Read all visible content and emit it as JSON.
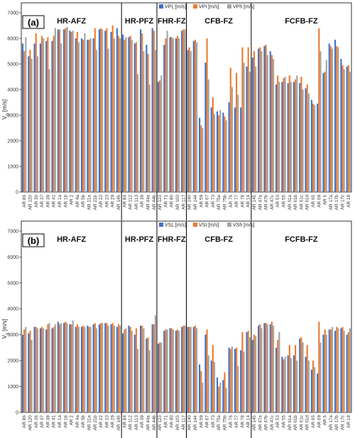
{
  "chart_data": [
    {
      "type": "bar",
      "panel_label": "(a)",
      "ylabel": "Vp [m/s]",
      "ylabel_main": "V",
      "ylabel_sub": "p",
      "ylabel_unit": "[m/s]",
      "ylim": [
        0,
        7000
      ],
      "yticks": [
        0,
        1000,
        2000,
        3000,
        4000,
        5000,
        6000,
        7000
      ],
      "grid": false,
      "legend_position": "top",
      "zones": [
        {
          "label": "HR-AFZ",
          "start": 0,
          "end": 17
        },
        {
          "label": "HR-PFZ",
          "start": 17,
          "end": 23
        },
        {
          "label": "FHR-FZ",
          "start": 23,
          "end": 28
        },
        {
          "label": "CFB-FZ",
          "start": 28,
          "end": 39
        },
        {
          "label": "FCFB-FZ",
          "start": 39,
          "end": 56
        }
      ],
      "categories": [
        "AR 86",
        "AR 120",
        "AR 36",
        "AR 37",
        "AR 38",
        "AR 41",
        "AR 1a",
        "AR 1b",
        "AR 2",
        "AR 4a",
        "AR 5b",
        "AR 21a",
        "AR 21b",
        "AR 22",
        "AR 23",
        "AR 29",
        "AR 146",
        "AR 84",
        "AR 112",
        "AR 113",
        "AR 39",
        "AR 44a",
        "AR 44b",
        "AR 123",
        "AR 71",
        "AR 80",
        "AR 103",
        "AR 117",
        "AR 140",
        "AR 144",
        "AR 59",
        "AR 67",
        "AR 73",
        "AR 75a",
        "AR 75b",
        "AR 76",
        "AR 77",
        "AR 78",
        "AR 14",
        "AR 145",
        "AR 47a",
        "AR 47b",
        "AR 47c",
        "AR 53",
        "AR 55",
        "AR 61a",
        "AR 61b",
        "AR 61c",
        "AR 61d",
        "AR 65",
        "AR 69",
        "AR 6",
        "AR 17a",
        "AR 17b",
        "AR 17c",
        "AR 18"
      ],
      "series": [
        {
          "name": "VPL [m/s]",
          "color": "#4472c4",
          "values": [
            5800,
            5300,
            5800,
            5800,
            5900,
            5900,
            6350,
            6350,
            6300,
            6000,
            6000,
            5950,
            6000,
            6350,
            6300,
            6250,
            6400,
            6150,
            6050,
            5800,
            6350,
            5750,
            6400,
            4300,
            5750,
            6050,
            6000,
            6300,
            5550,
            5900,
            2900,
            5050,
            3300,
            3150,
            3100,
            3500,
            3300,
            3300,
            4900,
            5250,
            5600,
            5700,
            5500,
            4200,
            4300,
            4250,
            4300,
            4250,
            4050,
            3600,
            3450,
            4650,
            5800,
            5950,
            5200,
            4900
          ]
        },
        {
          "name": "VPI [m/s]",
          "color": "#ed7d31",
          "values": [
            5500,
            5550,
            6200,
            6100,
            6050,
            6100,
            6350,
            6400,
            6250,
            6250,
            5950,
            5950,
            6400,
            6400,
            6400,
            6500,
            6100,
            5950,
            6100,
            5850,
            6200,
            5400,
            6300,
            4350,
            6000,
            6050,
            6100,
            6350,
            5650,
            5950,
            2600,
            6000,
            3700,
            3000,
            2950,
            4850,
            4650,
            5650,
            5650,
            5500,
            5650,
            5750,
            5350,
            4550,
            4450,
            4550,
            4400,
            4500,
            4200,
            3450,
            6400,
            4700,
            5700,
            5700,
            4950,
            4950
          ]
        },
        {
          "name": "VPh [m/s]",
          "color": "#a5a5a5",
          "values": [
            6050,
            5200,
            5300,
            6000,
            4800,
            6400,
            5800,
            6450,
            6300,
            5850,
            6200,
            6000,
            5550,
            6350,
            5600,
            6000,
            6000,
            6050,
            5950,
            4600,
            5500,
            4200,
            5550,
            4550,
            6300,
            6000,
            6000,
            6350,
            5500,
            5850,
            2500,
            4400,
            3050,
            3200,
            2800,
            4100,
            3800,
            5050,
            4700,
            4900,
            5500,
            5350,
            5200,
            4300,
            4500,
            4300,
            4550,
            4000,
            3850,
            3400,
            5500,
            5150,
            5600,
            5650,
            4800,
            4700
          ]
        }
      ]
    },
    {
      "type": "bar",
      "panel_label": "(b)",
      "ylabel": "Vs [m/s]",
      "ylabel_main": "V",
      "ylabel_sub": "s",
      "ylabel_unit": "[m/s]",
      "ylim": [
        0,
        7000
      ],
      "yticks": [
        0,
        1000,
        2000,
        3000,
        4000,
        5000,
        6000,
        7000
      ],
      "grid": false,
      "legend_position": "top",
      "zones": [
        {
          "label": "HR-AFZ",
          "start": 0,
          "end": 17
        },
        {
          "label": "HR-PFZ",
          "start": 17,
          "end": 23
        },
        {
          "label": "FHR-FZ",
          "start": 23,
          "end": 28
        },
        {
          "label": "CFB-FZ",
          "start": 28,
          "end": 39
        },
        {
          "label": "FCFB-FZ",
          "start": 39,
          "end": 56
        }
      ],
      "categories": [
        "AR 86",
        "AR 120",
        "AR 36",
        "AR 37",
        "AR 38",
        "AR 41",
        "AR 1a",
        "AR 1b",
        "AR 2",
        "AR 4a",
        "AR 5b",
        "AR 21a",
        "AR 21b",
        "AR 22",
        "AR 23",
        "AR 29",
        "AR 146",
        "AR 84",
        "AR 112",
        "AR 113",
        "AR 39",
        "AR 44a",
        "AR 44b",
        "AR 123",
        "AR 71",
        "AR 80",
        "AR 103",
        "AR 117",
        "AR 140",
        "AR 144",
        "AR 59",
        "AR 67",
        "AR 73",
        "AR 75a",
        "AR 75b",
        "AR 76",
        "AR 77",
        "AR 78",
        "AR 14",
        "AR 145",
        "AR 47a",
        "AR 47b",
        "AR 47c",
        "AR 53",
        "AR 55",
        "AR 61a",
        "AR 61b",
        "AR 61c",
        "AR 61d",
        "AR 65",
        "AR 69",
        "AR 6",
        "AR 17a",
        "AR 17b",
        "AR 17c",
        "AR 18"
      ],
      "series": [
        {
          "name": "VSL [m/s]",
          "color": "#4472c4",
          "values": [
            3000,
            3050,
            3300,
            3250,
            3200,
            3250,
            3500,
            3450,
            3400,
            3300,
            3300,
            3350,
            3400,
            3400,
            3450,
            3400,
            3300,
            3050,
            3350,
            3000,
            3350,
            2850,
            3400,
            2650,
            3150,
            3250,
            3150,
            3300,
            3300,
            3300,
            1850,
            3000,
            2000,
            1350,
            1250,
            2500,
            2450,
            2400,
            3100,
            2800,
            3350,
            3450,
            3400,
            2500,
            2150,
            2200,
            2200,
            2850,
            2150,
            1650,
            1500,
            3000,
            3200,
            3150,
            3250,
            3000
          ]
        },
        {
          "name": "VSI [m/s]",
          "color": "#ed7d31",
          "values": [
            3200,
            3150,
            3300,
            3300,
            3400,
            3300,
            3400,
            3500,
            3400,
            3400,
            3350,
            3300,
            3450,
            3450,
            3450,
            3450,
            3400,
            3200,
            3300,
            3250,
            3350,
            2900,
            3400,
            2700,
            3200,
            3250,
            3200,
            3350,
            3300,
            3350,
            1600,
            3200,
            2600,
            1000,
            1550,
            2450,
            2500,
            3100,
            3150,
            3000,
            3400,
            3450,
            3500,
            2800,
            2050,
            2600,
            2600,
            2900,
            2600,
            2000,
            3500,
            3200,
            3200,
            3300,
            3300,
            3100
          ]
        },
        {
          "name": "VSh [m/s]",
          "color": "#a5a5a5",
          "values": [
            3300,
            2800,
            3250,
            3250,
            3450,
            3400,
            3450,
            3450,
            3550,
            3300,
            3300,
            3300,
            3250,
            3450,
            3350,
            3350,
            3350,
            3250,
            3150,
            2450,
            3250,
            2400,
            3750,
            2700,
            3200,
            3200,
            3150,
            3350,
            3300,
            3250,
            1150,
            2200,
            1950,
            1150,
            950,
            2550,
            1800,
            2350,
            2900,
            2950,
            3250,
            3400,
            3350,
            3100,
            2150,
            2100,
            2000,
            2700,
            2000,
            1750,
            2700,
            3000,
            3300,
            3250,
            3150,
            3250
          ]
        }
      ]
    }
  ]
}
